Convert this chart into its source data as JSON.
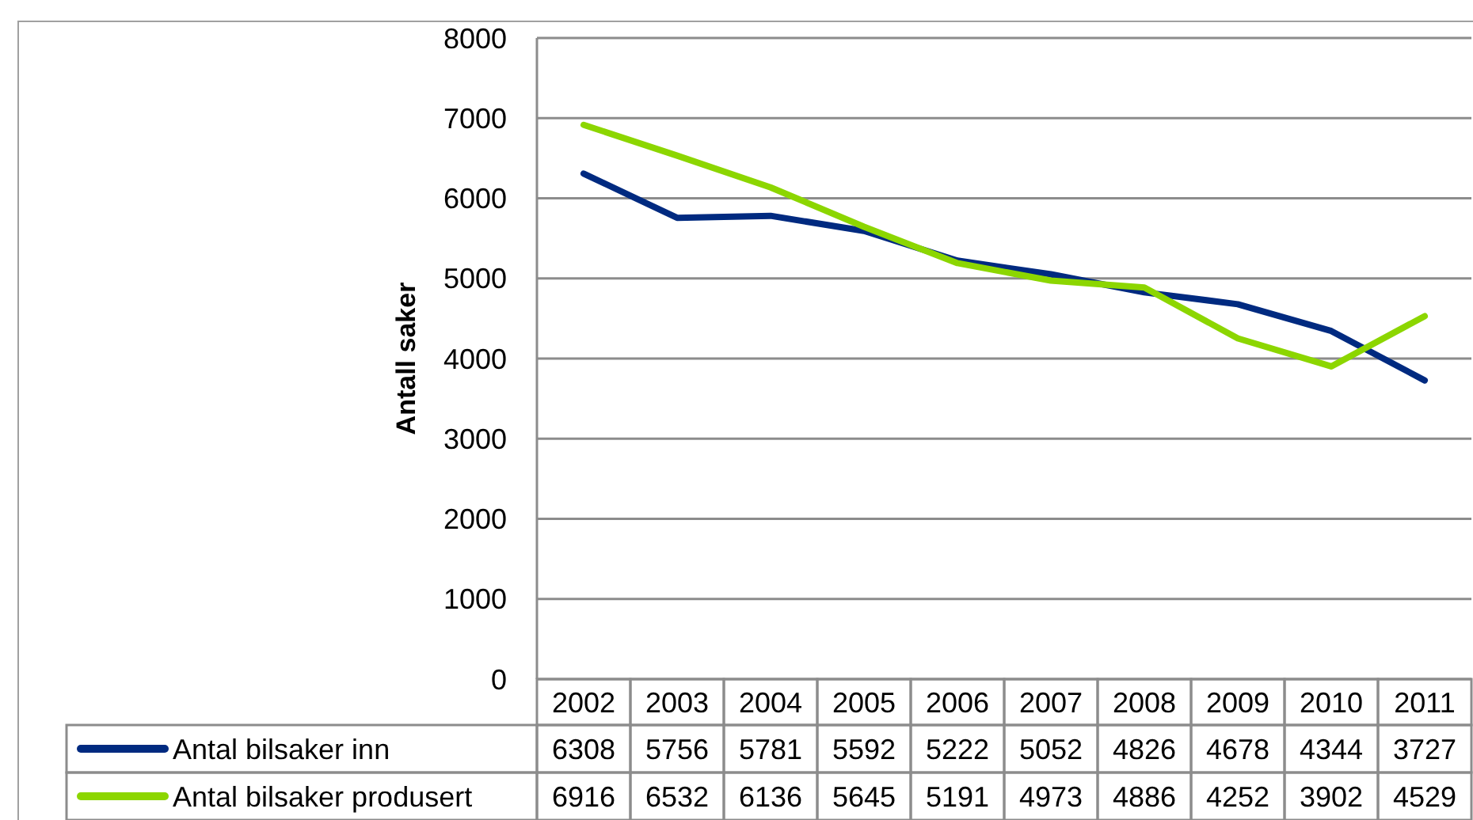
{
  "chart_data": {
    "type": "line",
    "ylabel": "Antall saker",
    "categories": [
      "2002",
      "2003",
      "2004",
      "2005",
      "2006",
      "2007",
      "2008",
      "2009",
      "2010",
      "2011"
    ],
    "series": [
      {
        "name": "Antal bilsaker inn",
        "color": "#002a80",
        "values": [
          6308,
          5756,
          5781,
          5592,
          5222,
          5052,
          4826,
          4678,
          4344,
          3727
        ]
      },
      {
        "name": "Antal bilsaker produsert",
        "color": "#8cd600",
        "values": [
          6916,
          6532,
          6136,
          5645,
          5191,
          4973,
          4886,
          4252,
          3902,
          4529
        ]
      }
    ],
    "ylim": [
      0,
      8000
    ],
    "yticks": [
      0,
      1000,
      2000,
      3000,
      4000,
      5000,
      6000,
      7000,
      8000
    ],
    "grid": "y",
    "legend": "bottom",
    "data_labels": true
  }
}
